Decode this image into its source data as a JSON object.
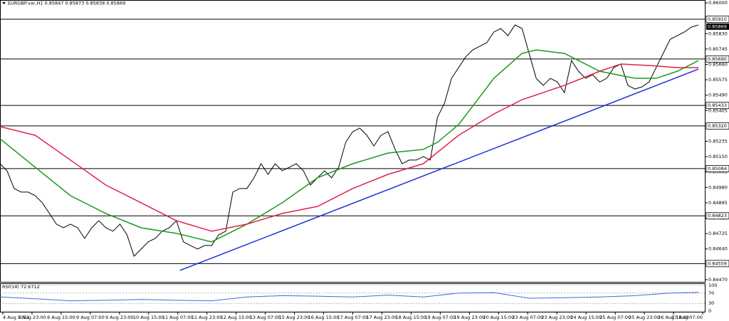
{
  "chart_data": {
    "type": "line",
    "title": "EURGBP.var,H1 0.85847 0.85873 0.85838 0.85869",
    "xlim": [
      0,
      100
    ],
    "ylim": [
      0.84454,
      0.86016
    ],
    "yticks": [
      {
        "value": 0.86,
        "label": "0.86000"
      },
      {
        "value": 0.8583,
        "label": "0.85830"
      },
      0.85745,
      {
        "value": 0.8566,
        "label": "0.85660"
      },
      0.85575,
      {
        "value": 0.8549,
        "label": "0.85490"
      },
      0.85405,
      0.85235,
      {
        "value": 0.8515,
        "label": "0.85150"
      },
      0.85065,
      {
        "value": 0.8498,
        "label": "0.84980"
      },
      0.84895,
      {
        "value": 0.8481,
        "label": "0.84810"
      },
      0.84725,
      {
        "value": 0.8464,
        "label": "0.84640"
      },
      {
        "value": 0.8447,
        "label": "0.84470"
      }
    ],
    "levels": [
      {
        "value": 0.8591,
        "label": "0.85910"
      },
      {
        "value": 0.8569,
        "label": "0.85690"
      },
      0.85433,
      {
        "value": 0.8532,
        "label": "0.85320"
      },
      0.85084,
      0.84823,
      0.84559
    ],
    "level_color": "#000000",
    "last_price": 0.85869,
    "time_labels": [
      "4 Aug 2021",
      "5 Aug 23:00",
      "6 Aug 15:00",
      "9 Aug 07:00",
      "9 Aug 23:00",
      "10 Aug 15:00",
      "11 Aug 07:00",
      "11 Aug 23:00",
      "12 Aug 15:00",
      "13 Aug 07:00",
      "15 Aug 23:00",
      "16 Aug 15:00",
      "17 Aug 07:00",
      "17 Aug 23:00",
      "18 Aug 15:00",
      "19 Aug 07:00",
      "19 Aug 23:00",
      "20 Aug 15:00",
      "23 Aug 07:00",
      "23 Aug 23:00",
      "24 Aug 15:00",
      "25 Aug 07:00",
      "25 Aug 23:00",
      "26 Aug 15:00",
      "27 Aug 07:00"
    ],
    "series": [
      {
        "color": "#000000",
        "values": [
          0.85111,
          0.85072,
          0.84974,
          0.84954,
          0.84954,
          0.84934,
          0.84895,
          0.84836,
          0.84777,
          0.84757,
          0.84777,
          0.84757,
          0.84698,
          0.84757,
          0.84796,
          0.84757,
          0.84738,
          0.84777,
          0.84718,
          0.846,
          0.84639,
          0.84679,
          0.84698,
          0.84738,
          0.84757,
          0.84796,
          0.84679,
          0.84659,
          0.84639,
          0.84659,
          0.84659,
          0.84718,
          0.84738,
          0.84954,
          0.84974,
          0.84974,
          0.85033,
          0.85111,
          0.85052,
          0.85111,
          0.85072,
          0.85091,
          0.85111,
          0.85072,
          0.84993,
          0.85033,
          0.85072,
          0.85033,
          0.85091,
          0.85229,
          0.85288,
          0.85308,
          0.85268,
          0.85209,
          0.85268,
          0.85288,
          0.8519,
          0.85111,
          0.85131,
          0.85131,
          0.8515,
          0.85131,
          0.85367,
          0.85445,
          0.85583,
          0.85642,
          0.85701,
          0.8574,
          0.8576,
          0.8578,
          0.85839,
          0.85858,
          0.85819,
          0.85878,
          0.85858,
          0.85721,
          0.85583,
          0.85544,
          0.85583,
          0.85563,
          0.85504,
          0.85681,
          0.85622,
          0.85583,
          0.85603,
          0.85563,
          0.85583,
          0.85642,
          0.85662,
          0.85544,
          0.85524,
          0.85536,
          0.85563,
          0.85642,
          0.85721,
          0.85799,
          0.85819,
          0.85839,
          0.85866,
          0.85878
        ]
      },
      {
        "color": "#1a9a1a",
        "x": [
          0,
          5,
          10,
          15,
          20,
          25,
          30,
          35,
          40,
          45,
          50,
          55,
          60,
          62,
          65,
          70,
          74,
          76,
          80,
          85,
          90,
          93,
          96,
          99
        ],
        "values": [
          0.85249,
          0.85091,
          0.84934,
          0.84836,
          0.84757,
          0.84726,
          0.84679,
          0.84777,
          0.84895,
          0.85033,
          0.85111,
          0.8517,
          0.8519,
          0.85229,
          0.85327,
          0.85583,
          0.85721,
          0.8574,
          0.85721,
          0.85622,
          0.85583,
          0.85583,
          0.85622,
          0.85681
        ]
      },
      {
        "color": "#e0224a",
        "x": [
          0,
          5,
          10,
          15,
          20,
          25,
          30,
          35,
          40,
          45,
          50,
          55,
          60,
          65,
          70,
          74,
          80,
          85,
          88,
          92,
          96,
          99
        ],
        "values": [
          0.85316,
          0.85268,
          0.85131,
          0.84993,
          0.84895,
          0.84796,
          0.84738,
          0.84777,
          0.84836,
          0.84875,
          0.84974,
          0.85052,
          0.85111,
          0.85268,
          0.85386,
          0.85465,
          0.85544,
          0.85622,
          0.85662,
          0.85654,
          0.85642,
          0.85642
        ]
      },
      {
        "color": "#1c2fd6",
        "x": [
          25.5,
          99
        ],
        "values": [
          0.84521,
          0.85634
        ]
      }
    ],
    "rsi": {
      "title": "RSI(14) 72.6712",
      "ylim": [
        0,
        100
      ],
      "yticks": [
        100,
        70,
        30,
        0
      ],
      "color": "#4169e1",
      "x": [
        0,
        5,
        10,
        15,
        20,
        25,
        30,
        35,
        40,
        45,
        50,
        55,
        60,
        65,
        70,
        75,
        80,
        85,
        90,
        95,
        99
      ],
      "values": [
        55,
        48,
        40,
        42,
        45,
        42,
        40,
        55,
        60,
        58,
        55,
        62,
        55,
        70,
        72,
        50,
        52,
        55,
        60,
        70,
        73
      ]
    }
  }
}
